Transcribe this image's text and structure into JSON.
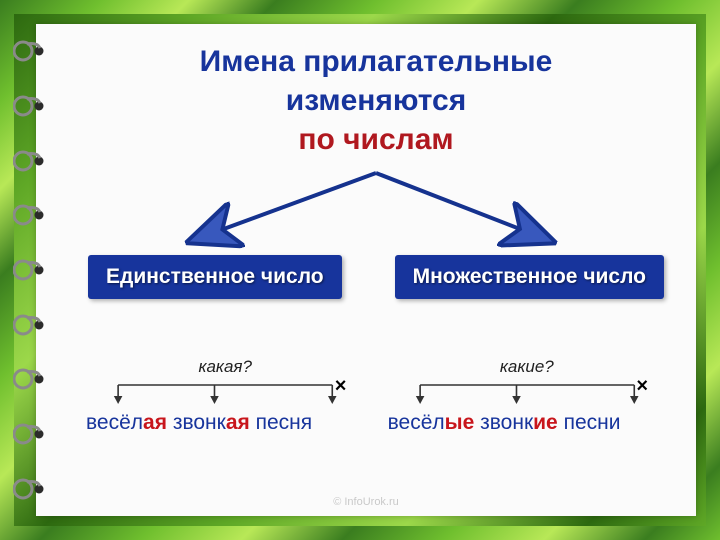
{
  "title": {
    "line1": "Имена прилагательные",
    "line2": "изменяются",
    "line3": "по числам"
  },
  "boxes": {
    "left": "Единственное число",
    "right": "Множественное число"
  },
  "colors": {
    "title_blue": "#17349c",
    "title_red": "#b0181f",
    "box_bg": "#17349c",
    "box_text": "#ffffff",
    "ending_red": "#c8161c",
    "phrase_blue": "#17349c",
    "arrow_stroke": "#15328e",
    "arrow_fill": "#3858bd",
    "bracket_color": "#333333",
    "frame_greens": [
      "#3a7d1f",
      "#6fbf2e",
      "#b8e857"
    ],
    "paper_bg": "#fbfbfb"
  },
  "left_example": {
    "question": "какая?",
    "word1_stem": "весёл",
    "word1_end": "ая",
    "word2_stem": "звонк",
    "word2_end": "ая",
    "noun": "песня",
    "cross": "×"
  },
  "right_example": {
    "question": "какие?",
    "word1_stem": "весёл",
    "word1_end": "ые",
    "word2_stem": "звонк",
    "word2_end": "ие",
    "noun": "песни",
    "cross": "×"
  },
  "footer": "© InfoUrok.ru",
  "spiral": {
    "count": 9
  },
  "typography": {
    "title_fontsize": 30,
    "box_fontsize": 21,
    "phrase_fontsize": 21,
    "question_fontsize": 17
  }
}
